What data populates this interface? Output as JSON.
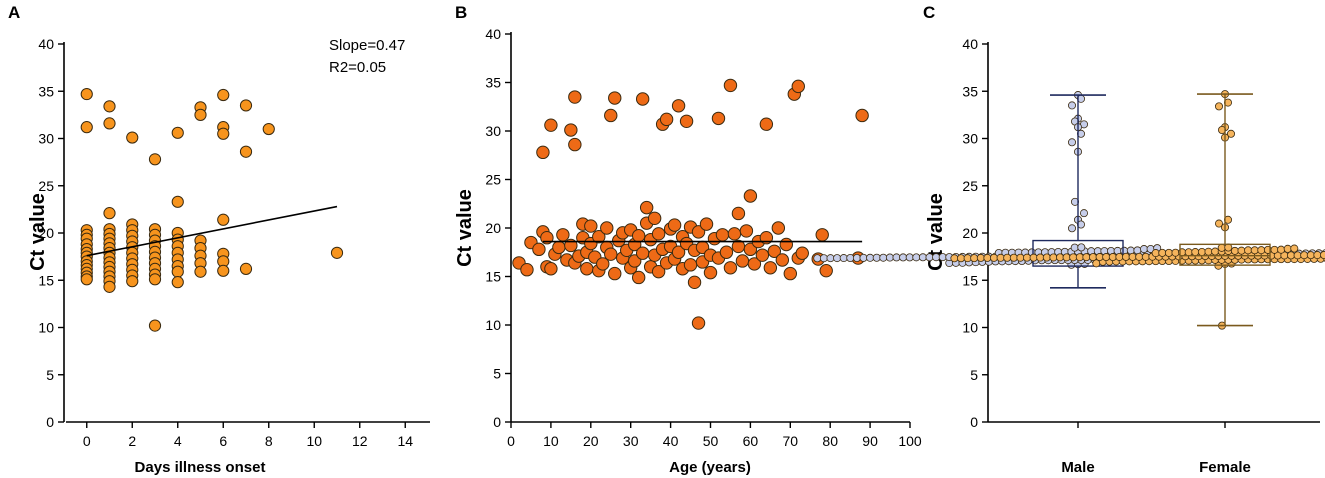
{
  "colors": {
    "panel_a_point": "#F7941D",
    "panel_b_point": "#EE6A16",
    "male_point": "#C7CEEA",
    "male_box": "#1F2A5E",
    "female_point": "#F5B45C",
    "female_box": "#7A5A1E",
    "point_stroke": "#3A2A10",
    "axis": "#000000"
  },
  "chart_data": [
    {
      "id": "A",
      "panel_label": "A",
      "type": "scatter",
      "title": "",
      "xlabel": "Days illness onset",
      "ylabel": "Ct value",
      "xlim": [
        -1,
        15
      ],
      "ylim": [
        0,
        40
      ],
      "xticks": [
        0,
        2,
        4,
        6,
        8,
        10,
        12,
        14
      ],
      "yticks": [
        0,
        5,
        10,
        15,
        20,
        25,
        30,
        35,
        40
      ],
      "annotations": [
        "Slope=0.47",
        "R2=0.05"
      ],
      "regression": {
        "x0": 0,
        "y0": 17.6,
        "x1": 11,
        "y1": 22.8
      },
      "points": [
        {
          "x": 0,
          "y": 34.7
        },
        {
          "x": 0,
          "y": 31.2
        },
        {
          "x": 0,
          "y": 20.3
        },
        {
          "x": 0,
          "y": 19.8
        },
        {
          "x": 0,
          "y": 19.4
        },
        {
          "x": 0,
          "y": 18.8
        },
        {
          "x": 0,
          "y": 18.3
        },
        {
          "x": 0,
          "y": 17.9
        },
        {
          "x": 0,
          "y": 17.5
        },
        {
          "x": 0,
          "y": 17.0
        },
        {
          "x": 0,
          "y": 16.6
        },
        {
          "x": 0,
          "y": 16.2
        },
        {
          "x": 0,
          "y": 15.8
        },
        {
          "x": 0,
          "y": 15.4
        },
        {
          "x": 0,
          "y": 15.1
        },
        {
          "x": 1,
          "y": 33.4
        },
        {
          "x": 1,
          "y": 31.6
        },
        {
          "x": 1,
          "y": 22.1
        },
        {
          "x": 1,
          "y": 20.4
        },
        {
          "x": 1,
          "y": 19.9
        },
        {
          "x": 1,
          "y": 19.4
        },
        {
          "x": 1,
          "y": 18.9
        },
        {
          "x": 1,
          "y": 18.4
        },
        {
          "x": 1,
          "y": 17.9
        },
        {
          "x": 1,
          "y": 17.4
        },
        {
          "x": 1,
          "y": 16.9
        },
        {
          "x": 1,
          "y": 16.4
        },
        {
          "x": 1,
          "y": 15.9
        },
        {
          "x": 1,
          "y": 15.4
        },
        {
          "x": 1,
          "y": 14.9
        },
        {
          "x": 1,
          "y": 14.3
        },
        {
          "x": 2,
          "y": 30.1
        },
        {
          "x": 2,
          "y": 20.9
        },
        {
          "x": 2,
          "y": 20.3
        },
        {
          "x": 2,
          "y": 19.7
        },
        {
          "x": 2,
          "y": 19.1
        },
        {
          "x": 2,
          "y": 18.5
        },
        {
          "x": 2,
          "y": 17.9
        },
        {
          "x": 2,
          "y": 17.3
        },
        {
          "x": 2,
          "y": 16.7
        },
        {
          "x": 2,
          "y": 16.1
        },
        {
          "x": 2,
          "y": 15.5
        },
        {
          "x": 2,
          "y": 14.9
        },
        {
          "x": 3,
          "y": 27.8
        },
        {
          "x": 3,
          "y": 20.4
        },
        {
          "x": 3,
          "y": 19.8
        },
        {
          "x": 3,
          "y": 19.2
        },
        {
          "x": 3,
          "y": 18.6
        },
        {
          "x": 3,
          "y": 18.0
        },
        {
          "x": 3,
          "y": 17.4
        },
        {
          "x": 3,
          "y": 16.8
        },
        {
          "x": 3,
          "y": 16.2
        },
        {
          "x": 3,
          "y": 15.6
        },
        {
          "x": 3,
          "y": 15.1
        },
        {
          "x": 3,
          "y": 10.2
        },
        {
          "x": 4,
          "y": 30.6
        },
        {
          "x": 4,
          "y": 23.3
        },
        {
          "x": 4,
          "y": 20.0
        },
        {
          "x": 4,
          "y": 19.3
        },
        {
          "x": 4,
          "y": 18.6
        },
        {
          "x": 4,
          "y": 17.9
        },
        {
          "x": 4,
          "y": 17.2
        },
        {
          "x": 4,
          "y": 16.5
        },
        {
          "x": 4,
          "y": 15.9
        },
        {
          "x": 4,
          "y": 14.8
        },
        {
          "x": 5,
          "y": 33.3
        },
        {
          "x": 5,
          "y": 32.5
        },
        {
          "x": 5,
          "y": 19.2
        },
        {
          "x": 5,
          "y": 18.4
        },
        {
          "x": 5,
          "y": 17.6
        },
        {
          "x": 5,
          "y": 16.8
        },
        {
          "x": 5,
          "y": 15.9
        },
        {
          "x": 6,
          "y": 34.6
        },
        {
          "x": 6,
          "y": 31.2
        },
        {
          "x": 6,
          "y": 30.5
        },
        {
          "x": 6,
          "y": 21.4
        },
        {
          "x": 6,
          "y": 17.8
        },
        {
          "x": 6,
          "y": 17.0
        },
        {
          "x": 6,
          "y": 16.0
        },
        {
          "x": 7,
          "y": 33.5
        },
        {
          "x": 7,
          "y": 28.6
        },
        {
          "x": 7,
          "y": 16.2
        },
        {
          "x": 8,
          "y": 31.0
        },
        {
          "x": 11,
          "y": 17.9
        }
      ]
    },
    {
      "id": "B",
      "panel_label": "B",
      "type": "scatter",
      "title": "",
      "xlabel": "Age (years)",
      "ylabel": "Ct value",
      "xlim": [
        0,
        100
      ],
      "ylim": [
        0,
        40
      ],
      "xticks": [
        0,
        10,
        20,
        30,
        40,
        50,
        60,
        70,
        80,
        90,
        100
      ],
      "yticks": [
        0,
        5,
        10,
        15,
        20,
        25,
        30,
        35,
        40
      ],
      "regression": {
        "x0": 8,
        "y0": 18.6,
        "x1": 88,
        "y1": 18.6
      },
      "points": [
        {
          "x": 2,
          "y": 16.4
        },
        {
          "x": 4,
          "y": 15.7
        },
        {
          "x": 5,
          "y": 18.5
        },
        {
          "x": 7,
          "y": 17.8
        },
        {
          "x": 8,
          "y": 19.6
        },
        {
          "x": 8,
          "y": 27.8
        },
        {
          "x": 9,
          "y": 16.0
        },
        {
          "x": 9,
          "y": 19.0
        },
        {
          "x": 10,
          "y": 30.6
        },
        {
          "x": 10,
          "y": 15.8
        },
        {
          "x": 11,
          "y": 17.3
        },
        {
          "x": 12,
          "y": 18.0
        },
        {
          "x": 13,
          "y": 19.3
        },
        {
          "x": 14,
          "y": 16.7
        },
        {
          "x": 15,
          "y": 30.1
        },
        {
          "x": 15,
          "y": 18.2
        },
        {
          "x": 16,
          "y": 33.5
        },
        {
          "x": 16,
          "y": 28.6
        },
        {
          "x": 16,
          "y": 16.4
        },
        {
          "x": 17,
          "y": 17.1
        },
        {
          "x": 18,
          "y": 20.4
        },
        {
          "x": 18,
          "y": 19.0
        },
        {
          "x": 19,
          "y": 17.5
        },
        {
          "x": 19,
          "y": 15.8
        },
        {
          "x": 20,
          "y": 20.2
        },
        {
          "x": 20,
          "y": 18.4
        },
        {
          "x": 21,
          "y": 17.0
        },
        {
          "x": 22,
          "y": 15.6
        },
        {
          "x": 22,
          "y": 19.1
        },
        {
          "x": 23,
          "y": 16.3
        },
        {
          "x": 24,
          "y": 18.0
        },
        {
          "x": 24,
          "y": 20.0
        },
        {
          "x": 25,
          "y": 31.6
        },
        {
          "x": 25,
          "y": 17.3
        },
        {
          "x": 26,
          "y": 33.4
        },
        {
          "x": 26,
          "y": 15.3
        },
        {
          "x": 27,
          "y": 18.7
        },
        {
          "x": 28,
          "y": 16.9
        },
        {
          "x": 28,
          "y": 19.5
        },
        {
          "x": 29,
          "y": 17.7
        },
        {
          "x": 30,
          "y": 15.9
        },
        {
          "x": 30,
          "y": 19.8
        },
        {
          "x": 31,
          "y": 18.3
        },
        {
          "x": 31,
          "y": 16.6
        },
        {
          "x": 32,
          "y": 14.9
        },
        {
          "x": 32,
          "y": 19.2
        },
        {
          "x": 33,
          "y": 33.3
        },
        {
          "x": 33,
          "y": 17.4
        },
        {
          "x": 34,
          "y": 20.5
        },
        {
          "x": 34,
          "y": 22.1
        },
        {
          "x": 35,
          "y": 16.0
        },
        {
          "x": 35,
          "y": 18.8
        },
        {
          "x": 36,
          "y": 17.2
        },
        {
          "x": 36,
          "y": 21.0
        },
        {
          "x": 37,
          "y": 19.4
        },
        {
          "x": 37,
          "y": 15.5
        },
        {
          "x": 38,
          "y": 30.7
        },
        {
          "x": 38,
          "y": 17.8
        },
        {
          "x": 39,
          "y": 31.2
        },
        {
          "x": 39,
          "y": 16.4
        },
        {
          "x": 40,
          "y": 19.9
        },
        {
          "x": 40,
          "y": 18.1
        },
        {
          "x": 41,
          "y": 16.8
        },
        {
          "x": 41,
          "y": 20.3
        },
        {
          "x": 42,
          "y": 32.6
        },
        {
          "x": 42,
          "y": 17.5
        },
        {
          "x": 43,
          "y": 15.8
        },
        {
          "x": 43,
          "y": 19.1
        },
        {
          "x": 44,
          "y": 31.0
        },
        {
          "x": 44,
          "y": 18.4
        },
        {
          "x": 45,
          "y": 16.2
        },
        {
          "x": 45,
          "y": 20.1
        },
        {
          "x": 46,
          "y": 17.7
        },
        {
          "x": 46,
          "y": 14.4
        },
        {
          "x": 47,
          "y": 10.2
        },
        {
          "x": 47,
          "y": 19.6
        },
        {
          "x": 48,
          "y": 18.0
        },
        {
          "x": 48,
          "y": 16.5
        },
        {
          "x": 49,
          "y": 20.4
        },
        {
          "x": 50,
          "y": 17.2
        },
        {
          "x": 50,
          "y": 15.4
        },
        {
          "x": 51,
          "y": 18.9
        },
        {
          "x": 52,
          "y": 31.3
        },
        {
          "x": 52,
          "y": 16.9
        },
        {
          "x": 53,
          "y": 19.3
        },
        {
          "x": 54,
          "y": 17.5
        },
        {
          "x": 55,
          "y": 34.7
        },
        {
          "x": 55,
          "y": 15.9
        },
        {
          "x": 56,
          "y": 19.4
        },
        {
          "x": 57,
          "y": 21.5
        },
        {
          "x": 57,
          "y": 18.1
        },
        {
          "x": 58,
          "y": 16.6
        },
        {
          "x": 59,
          "y": 19.7
        },
        {
          "x": 60,
          "y": 23.3
        },
        {
          "x": 60,
          "y": 17.8
        },
        {
          "x": 61,
          "y": 16.3
        },
        {
          "x": 62,
          "y": 18.6
        },
        {
          "x": 63,
          "y": 17.2
        },
        {
          "x": 64,
          "y": 30.7
        },
        {
          "x": 64,
          "y": 19.0
        },
        {
          "x": 65,
          "y": 15.9
        },
        {
          "x": 66,
          "y": 17.6
        },
        {
          "x": 67,
          "y": 20.0
        },
        {
          "x": 68,
          "y": 16.7
        },
        {
          "x": 69,
          "y": 18.3
        },
        {
          "x": 70,
          "y": 15.3
        },
        {
          "x": 71,
          "y": 33.8
        },
        {
          "x": 72,
          "y": 34.6
        },
        {
          "x": 72,
          "y": 16.9
        },
        {
          "x": 73,
          "y": 17.4
        },
        {
          "x": 77,
          "y": 16.8
        },
        {
          "x": 78,
          "y": 19.3
        },
        {
          "x": 79,
          "y": 15.6
        },
        {
          "x": 87,
          "y": 16.9
        },
        {
          "x": 88,
          "y": 31.6
        }
      ]
    },
    {
      "id": "C",
      "panel_label": "C",
      "type": "box",
      "title": "",
      "xlabel": "",
      "ylabel": "Ct value",
      "ylim": [
        0,
        40
      ],
      "yticks": [
        0,
        5,
        10,
        15,
        20,
        25,
        30,
        35,
        40
      ],
      "categories": [
        "Male",
        "Female"
      ],
      "boxes": [
        {
          "name": "Male",
          "min": 14.2,
          "q1": 16.5,
          "median": 17.6,
          "q3": 19.2,
          "max": 34.6
        },
        {
          "name": "Female",
          "min": 10.2,
          "q1": 16.6,
          "median": 17.6,
          "q3": 18.8,
          "max": 34.7
        }
      ],
      "outlier_values": {
        "Male": [
          34.6,
          34.2,
          33.5,
          32.1,
          31.8,
          31.5,
          31.2,
          30.5,
          29.6,
          28.6,
          23.3,
          22.1,
          21.4,
          20.9,
          20.5
        ],
        "Female": [
          34.7,
          33.8,
          33.4,
          31.2,
          30.9,
          30.5,
          30.1,
          21.4,
          21.0,
          20.6,
          10.2
        ]
      }
    }
  ]
}
